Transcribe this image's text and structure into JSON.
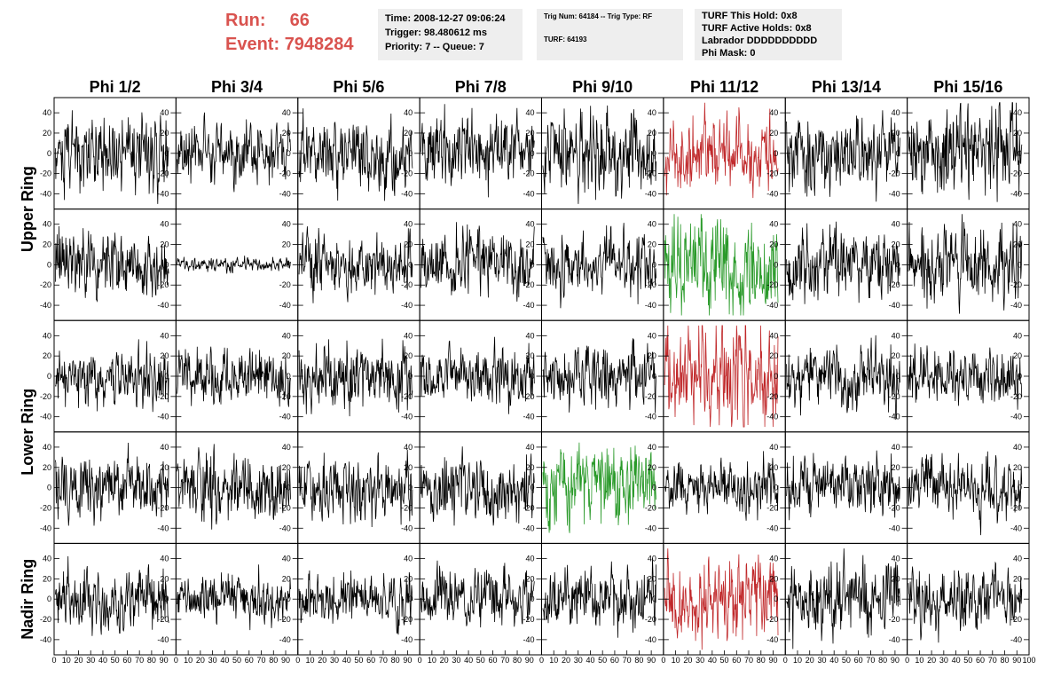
{
  "header": {
    "run_label": "Run:",
    "run_value": "66",
    "event_label": "Event:",
    "event_value": "7948284"
  },
  "info_box_1": {
    "time": "Time: 2008-12-27 09:06:24",
    "trigger": "Trigger: 98.480612 ms",
    "priority": "Priority: 7 -- Queue: 7"
  },
  "info_box_2": {
    "trig": "Trig Num: 64184 -- Trig Type: RF",
    "turf": "TURF: 64193"
  },
  "info_box_3": {
    "this_hold": "TURF This Hold: 0x8",
    "active_holds": "TURF Active Holds: 0x8",
    "labrador": "Labrador DDDDDDDDDD",
    "phi_mask": "Phi Mask: 0"
  },
  "colors": {
    "normal": "#000000",
    "red": "#c0282a",
    "green": "#2a9a2a",
    "title_red": "#d9534f"
  },
  "chart_data": {
    "type": "line",
    "columns": [
      "Phi 1/2",
      "Phi 3/4",
      "Phi 5/6",
      "Phi 7/8",
      "Phi 9/10",
      "Phi 11/12",
      "Phi 13/14",
      "Phi 15/16"
    ],
    "ring_labels": [
      "Upper Ring",
      "Lower Ring",
      "Nadir Ring"
    ],
    "y_ticks": [
      "-40",
      "-20",
      "0",
      "20",
      "40"
    ],
    "x_ticks": [
      "0",
      "10",
      "20",
      "30",
      "40",
      "50",
      "60",
      "70",
      "80",
      "90",
      "100"
    ],
    "xlim": [
      0,
      100
    ],
    "ylim": [
      -55,
      55
    ],
    "grid": false,
    "rows": [
      {
        "amplitudes": [
          17,
          13,
          15,
          16,
          18,
          16,
          17,
          20
        ],
        "colors": [
          "normal",
          "normal",
          "normal",
          "normal",
          "normal",
          "red",
          "normal",
          "normal"
        ]
      },
      {
        "amplitudes": [
          14,
          3,
          14,
          16,
          15,
          22,
          15,
          17
        ],
        "colors": [
          "normal",
          "normal",
          "normal",
          "normal",
          "normal",
          "green",
          "normal",
          "normal"
        ]
      },
      {
        "amplitudes": [
          13,
          12,
          14,
          13,
          15,
          22,
          14,
          13
        ],
        "colors": [
          "normal",
          "normal",
          "normal",
          "normal",
          "normal",
          "red",
          "normal",
          "normal"
        ]
      },
      {
        "amplitudes": [
          15,
          15,
          14,
          15,
          18,
          12,
          13,
          14
        ],
        "colors": [
          "normal",
          "normal",
          "normal",
          "normal",
          "green",
          "normal",
          "normal",
          "normal"
        ]
      },
      {
        "amplitudes": [
          14,
          12,
          12,
          12,
          14,
          18,
          16,
          14
        ],
        "colors": [
          "normal",
          "normal",
          "normal",
          "normal",
          "normal",
          "red",
          "normal",
          "normal"
        ]
      }
    ]
  }
}
